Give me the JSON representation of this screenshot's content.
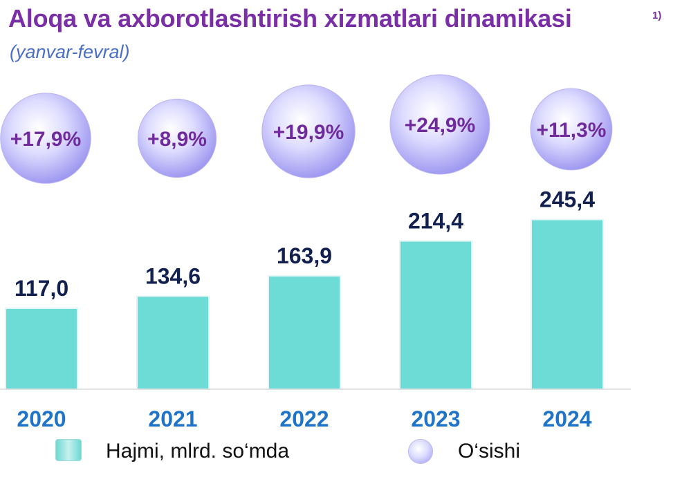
{
  "title": "Aloqa va axborotlashtirish xizmatlari dinamikasi",
  "title_note": "1)",
  "subtitle": "(yanvar-fevral)",
  "chart_data": {
    "type": "bar",
    "title": "Aloqa va axborotlashtirish xizmatlari dinamikasi",
    "subtitle": "(yanvar-fevral)",
    "categories": [
      "2020",
      "2021",
      "2022",
      "2023",
      "2024"
    ],
    "series": [
      {
        "name": "Hajmi, mlrd. so‘mda",
        "values": [
          117.0,
          134.6,
          163.9,
          214.4,
          245.4
        ],
        "labels": [
          "117,0",
          "134,6",
          "163,9",
          "214,4",
          "245,4"
        ],
        "color": "#6ddcd6"
      },
      {
        "name": "O‘sishi",
        "values": [
          17.9,
          8.9,
          19.9,
          24.9,
          11.3
        ],
        "labels": [
          "+17,9%",
          "+8,9%",
          "+19,9%",
          "+24,9%",
          "+11,3%"
        ],
        "color": "#a59ff2"
      }
    ],
    "legend_position": "bottom",
    "grid": false
  },
  "legend": {
    "volume_label": "Hajmi, mlrd. so‘mda",
    "growth_label": "O‘sishi"
  }
}
